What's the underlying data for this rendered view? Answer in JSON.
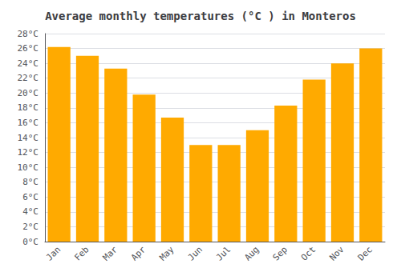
{
  "chart_data": {
    "type": "bar",
    "title": "Average monthly temperatures (°C ) in Monteros",
    "categories": [
      "Jan",
      "Feb",
      "Mar",
      "Apr",
      "May",
      "Jun",
      "Jul",
      "Aug",
      "Sep",
      "Oct",
      "Nov",
      "Dec"
    ],
    "values": [
      26.2,
      25.0,
      23.3,
      19.8,
      16.7,
      13.0,
      13.0,
      15.0,
      18.3,
      21.8,
      24.0,
      26.0
    ],
    "color": "#FFAA00",
    "ylim": [
      0,
      28
    ],
    "yticks": [
      {
        "value": 0,
        "label": "0°C"
      },
      {
        "value": 2,
        "label": "2°C"
      },
      {
        "value": 4,
        "label": "4°C"
      },
      {
        "value": 6,
        "label": "6°C"
      },
      {
        "value": 8,
        "label": "8°C"
      },
      {
        "value": 10,
        "label": "10°C"
      },
      {
        "value": 12,
        "label": "12°C"
      },
      {
        "value": 14,
        "label": "14°C"
      },
      {
        "value": 16,
        "label": "16°C"
      },
      {
        "value": 18,
        "label": "18°C"
      },
      {
        "value": 20,
        "label": "20°C"
      },
      {
        "value": 22,
        "label": "22°C"
      },
      {
        "value": 24,
        "label": "24°C"
      },
      {
        "value": 26,
        "label": "26°C"
      },
      {
        "value": 28,
        "label": "28°C"
      }
    ],
    "grid": true
  }
}
